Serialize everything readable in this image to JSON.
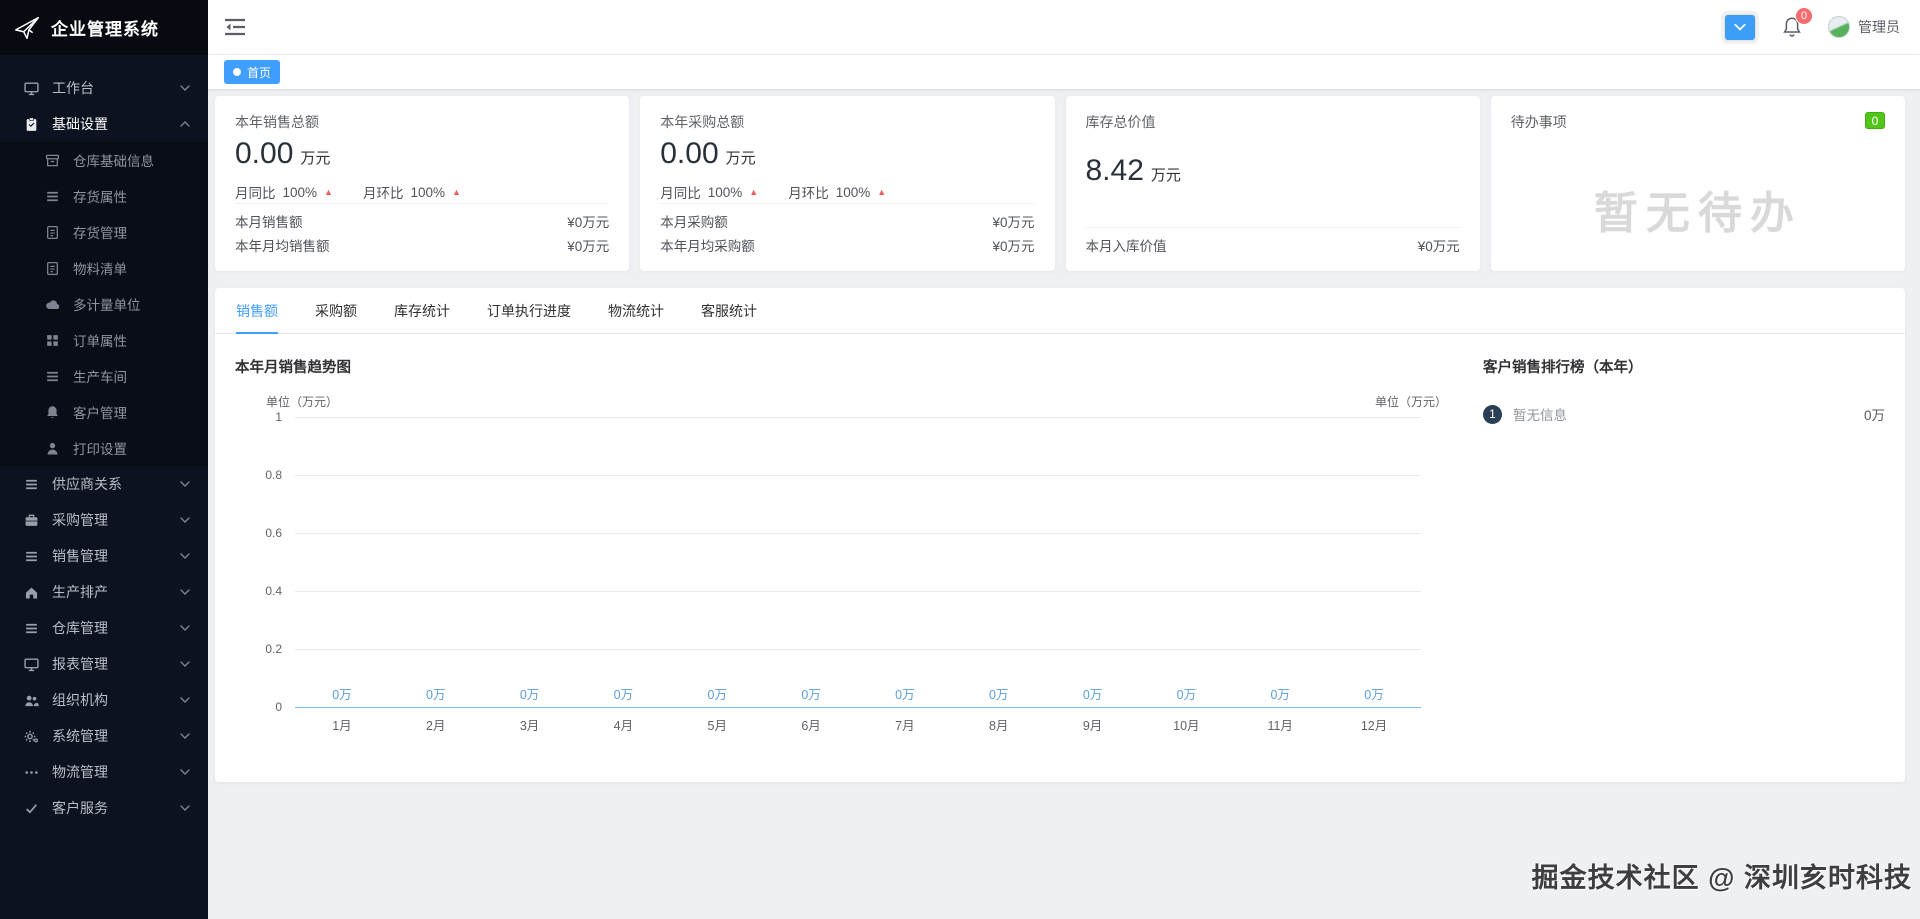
{
  "colors": {
    "accent": "#409eff",
    "trend_up_red": "#f25f5f",
    "todo_green": "#52c41a",
    "notification_red": "#f56c6c",
    "rank_badge_navy": "#2a3f54",
    "chart_label_blue": "#5b9fd8",
    "sidebar_bg": "#0d1220"
  },
  "app": {
    "logo_title": "企业管理系统"
  },
  "topbar": {
    "user_name": "管理员",
    "notification_count": "0"
  },
  "tagbar": {
    "tags": [
      {
        "label": "首页",
        "active": true
      }
    ]
  },
  "sidebar": {
    "items": [
      {
        "label": "工作台",
        "icon": "monitor-icon",
        "expandable": true,
        "expanded": false
      },
      {
        "label": "基础设置",
        "icon": "clipboard-icon",
        "expandable": true,
        "expanded": true,
        "active": true,
        "children": [
          {
            "label": "仓库基础信息",
            "icon": "archive-icon"
          },
          {
            "label": "存货属性",
            "icon": "list-icon"
          },
          {
            "label": "存货管理",
            "icon": "document-icon"
          },
          {
            "label": "物料清单",
            "icon": "document-icon"
          },
          {
            "label": "多计量单位",
            "icon": "cloud-icon"
          },
          {
            "label": "订单属性",
            "icon": "grid-icon"
          },
          {
            "label": "生产车间",
            "icon": "list-icon"
          },
          {
            "label": "客户管理",
            "icon": "bell-icon"
          },
          {
            "label": "打印设置",
            "icon": "user-icon"
          }
        ]
      },
      {
        "label": "供应商关系",
        "icon": "list-icon",
        "expandable": true,
        "expanded": false
      },
      {
        "label": "采购管理",
        "icon": "briefcase-icon",
        "expandable": true,
        "expanded": false
      },
      {
        "label": "销售管理",
        "icon": "list-icon",
        "expandable": true,
        "expanded": false
      },
      {
        "label": "生产排产",
        "icon": "home-icon",
        "expandable": true,
        "expanded": false
      },
      {
        "label": "仓库管理",
        "icon": "list-icon",
        "expandable": true,
        "expanded": false
      },
      {
        "label": "报表管理",
        "icon": "monitor-icon",
        "expandable": true,
        "expanded": false
      },
      {
        "label": "组织机构",
        "icon": "users-icon",
        "expandable": true,
        "expanded": false
      },
      {
        "label": "系统管理",
        "icon": "gears-icon",
        "expandable": true,
        "expanded": false
      },
      {
        "label": "物流管理",
        "icon": "ellipsis-icon",
        "expandable": true,
        "expanded": false
      },
      {
        "label": "客户服务",
        "icon": "check-icon",
        "expandable": true,
        "expanded": false
      }
    ]
  },
  "stat_cards": [
    {
      "title": "本年销售总额",
      "value": "0.00",
      "unit": "万元",
      "metrics": [
        {
          "label": "月同比",
          "value": "100%",
          "trend": "up"
        },
        {
          "label": "月环比",
          "value": "100%",
          "trend": "up"
        }
      ],
      "rows": [
        {
          "label": "本月销售额",
          "value": "¥0万元"
        },
        {
          "label": "本年月均销售额",
          "value": "¥0万元"
        }
      ]
    },
    {
      "title": "本年采购总额",
      "value": "0.00",
      "unit": "万元",
      "metrics": [
        {
          "label": "月同比",
          "value": "100%",
          "trend": "up"
        },
        {
          "label": "月环比",
          "value": "100%",
          "trend": "up"
        }
      ],
      "rows": [
        {
          "label": "本月采购额",
          "value": "¥0万元"
        },
        {
          "label": "本年月均采购额",
          "value": "¥0万元"
        }
      ]
    },
    {
      "title": "库存总价值",
      "value": "8.42",
      "unit": "万元",
      "spaced": true,
      "rows": [
        {
          "label": "本月入库价值",
          "value": "¥0万元"
        }
      ]
    },
    {
      "title": "待办事项",
      "badge": "0",
      "empty_text": "暂无待办"
    }
  ],
  "tabs": [
    {
      "label": "销售额",
      "active": true
    },
    {
      "label": "采购额",
      "active": false
    },
    {
      "label": "库存统计",
      "active": false
    },
    {
      "label": "订单执行进度",
      "active": false
    },
    {
      "label": "物流统计",
      "active": false
    },
    {
      "label": "客服统计",
      "active": false
    }
  ],
  "chart_data": {
    "type": "line",
    "title": "本年月销售趋势图",
    "unit_label_left": "单位（万元）",
    "unit_label_right": "单位（万元）",
    "categories": [
      "1月",
      "2月",
      "3月",
      "4月",
      "5月",
      "6月",
      "7月",
      "8月",
      "9月",
      "10月",
      "11月",
      "12月"
    ],
    "values": [
      0,
      0,
      0,
      0,
      0,
      0,
      0,
      0,
      0,
      0,
      0,
      0
    ],
    "point_labels": [
      "0万",
      "0万",
      "0万",
      "0万",
      "0万",
      "0万",
      "0万",
      "0万",
      "0万",
      "0万",
      "0万",
      "0万"
    ],
    "y_ticks": [
      0,
      0.2,
      0.4,
      0.6,
      0.8,
      1
    ],
    "ylim": [
      0,
      1
    ],
    "grid": true,
    "legend_position": "none"
  },
  "ranking": {
    "title": "客户销售排行榜（本年）",
    "items": [
      {
        "rank": "1",
        "name": "暂无信息",
        "value": "0万"
      }
    ]
  },
  "footer": {
    "watermark": "掘金技术社区 @ 深圳亥时科技"
  }
}
